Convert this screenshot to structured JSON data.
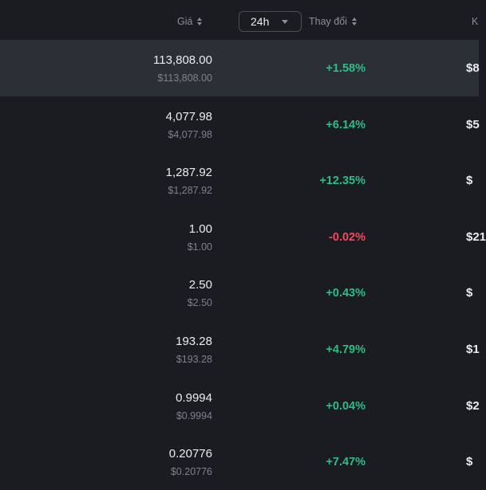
{
  "header": {
    "price_label": "Giá",
    "period": "24h",
    "change_label": "Thay đổi",
    "next_col_label": "K"
  },
  "rows": [
    {
      "price": "113,808.00",
      "price_usd": "$113,808.00",
      "change": "+1.58%",
      "direction": "up",
      "mcap": "$8"
    },
    {
      "price": "4,077.98",
      "price_usd": "$4,077.98",
      "change": "+6.14%",
      "direction": "up",
      "mcap": "$5"
    },
    {
      "price": "1,287.92",
      "price_usd": "$1,287.92",
      "change": "+12.35%",
      "direction": "up",
      "mcap": "$"
    },
    {
      "price": "1.00",
      "price_usd": "$1.00",
      "change": "-0.02%",
      "direction": "down",
      "mcap": "$21"
    },
    {
      "price": "2.50",
      "price_usd": "$2.50",
      "change": "+0.43%",
      "direction": "up",
      "mcap": "$"
    },
    {
      "price": "193.28",
      "price_usd": "$193.28",
      "change": "+4.79%",
      "direction": "up",
      "mcap": "$1"
    },
    {
      "price": "0.9994",
      "price_usd": "$0.9994",
      "change": "+0.04%",
      "direction": "up",
      "mcap": "$2"
    },
    {
      "price": "0.20776",
      "price_usd": "$0.20776",
      "change": "+7.47%",
      "direction": "up",
      "mcap": "$"
    }
  ],
  "colors": {
    "background": "#1b1c21",
    "highlight_row": "#2b2f36",
    "positive": "#2ebd85",
    "negative": "#f6465d",
    "muted_text": "#8a8f98"
  },
  "icons": [
    "sort-icon",
    "chevron-down-icon"
  ]
}
